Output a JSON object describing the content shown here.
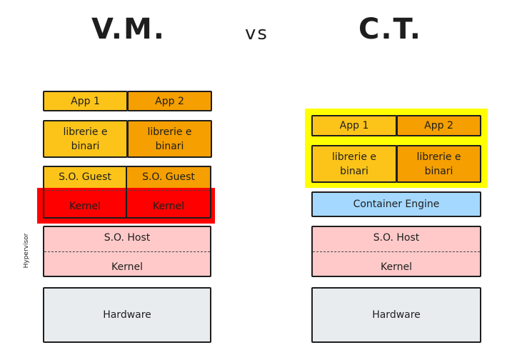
{
  "titles": {
    "left": "V.M.",
    "vs": "vs",
    "right": "C.T."
  },
  "colors": {
    "app1": "#fcc419",
    "app2": "#f59f00",
    "kernel_highlight": "#ff0000",
    "host": "#ffc9c9",
    "hardware": "#e9ecef",
    "engine": "#a5d8ff",
    "container_highlight": "#ffff00"
  },
  "vm": {
    "app1": "App 1",
    "app2": "App 2",
    "libs1": "librerie e binari",
    "libs2": "librerie e binari",
    "guest1": "S.O. Guest",
    "guest2": "S.O. Guest",
    "kernel1": "Kernel",
    "kernel2": "Kernel",
    "host": "S.O. Host",
    "host_kernel": "Kernel",
    "hardware": "Hardware",
    "hypervisor": "Hypervisor"
  },
  "ct": {
    "app1": "App 1",
    "app2": "App 2",
    "libs1": "librerie e binari",
    "libs2": "librerie e binari",
    "engine": "Container Engine",
    "host": "S.O. Host",
    "host_kernel": "Kernel",
    "hardware": "Hardware"
  }
}
